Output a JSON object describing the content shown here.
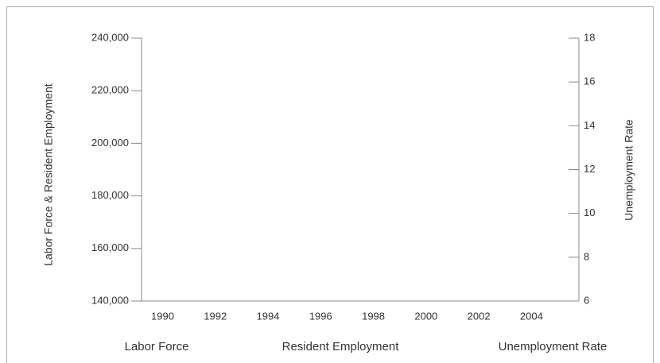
{
  "chart_data": {
    "type": "line",
    "x": [
      1990,
      1992,
      1994,
      1996,
      1998,
      2000,
      2002,
      2004
    ],
    "xlim": [
      1989.2,
      2005.8
    ],
    "xticks": [
      1990,
      1992,
      1994,
      1996,
      1998,
      2000,
      2002,
      2004
    ],
    "ylabel": "Labor Force & Resident Employment",
    "y2label": "Unemployment Rate",
    "ylim": [
      140000,
      240000
    ],
    "yticks": [
      {
        "value": 140000,
        "label": "140,000"
      },
      {
        "value": 160000,
        "label": "160,000"
      },
      {
        "value": 180000,
        "label": "180,000"
      },
      {
        "value": 200000,
        "label": "200,000"
      },
      {
        "value": 220000,
        "label": "220,000"
      },
      {
        "value": 240000,
        "label": "240,000"
      }
    ],
    "y2lim": [
      6,
      18
    ],
    "y2ticks": [
      6,
      8,
      10,
      12,
      14,
      16,
      18
    ],
    "series": [
      {
        "name": "Labor Force",
        "values": [
          null,
          null,
          null,
          null,
          null,
          null,
          null,
          null
        ]
      },
      {
        "name": "Resident Employment",
        "values": [
          null,
          null,
          null,
          null,
          null,
          null,
          null,
          null
        ]
      },
      {
        "name": "Unemployment Rate",
        "axis": "y2",
        "values": [
          null,
          null,
          null,
          null,
          null,
          null,
          null,
          null
        ]
      }
    ]
  }
}
